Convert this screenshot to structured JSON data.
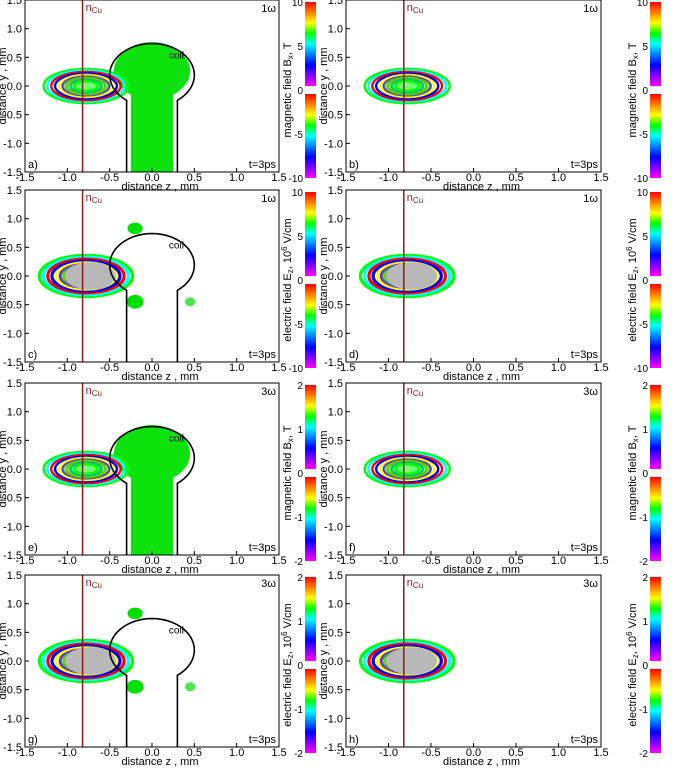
{
  "chart_data": [
    {
      "panel": "a)",
      "type": "heatmap",
      "quantity": "Bx",
      "variant": "coil",
      "harmonic": "1ω",
      "time": "t=3ps",
      "xlabel": "distance z , mm",
      "ylabel": "distance y , mm",
      "xlim": [
        -1.5,
        1.5
      ],
      "ylim": [
        -1.5,
        1.5
      ],
      "xticks": [
        "-1.5",
        "-1.0",
        "-0.5",
        "0.0",
        "0.5",
        "1.0",
        "1.5"
      ],
      "yticks": [
        "1.5",
        "1.0",
        "0.5",
        "0.0",
        "-0.5",
        "-1.0",
        "-1.5"
      ],
      "ncu_z": -0.82,
      "ncu_label": "n",
      "ncu_sub": "Cu",
      "coil_label": "coil"
    },
    {
      "panel": "b)",
      "type": "heatmap",
      "quantity": "Bx",
      "variant": "nocoil",
      "harmonic": "1ω",
      "time": "t=3ps",
      "xlabel": "distance z , mm",
      "ylabel": "distance y , mm",
      "xlim": [
        -1.5,
        1.5
      ],
      "ylim": [
        -1.5,
        1.5
      ],
      "xticks": [
        "-1.5",
        "-1.0",
        "-0.5",
        "0.0",
        "0.5",
        "1.0",
        "1.5"
      ],
      "yticks": [
        "1.5",
        "1.0",
        "0.5",
        "0.0",
        "-0.5",
        "-1.0",
        "-1.5"
      ],
      "ncu_z": -0.82,
      "ncu_label": "n",
      "ncu_sub": "Cu"
    },
    {
      "panel": "c)",
      "type": "heatmap",
      "quantity": "Ez",
      "variant": "coil",
      "harmonic": "1ω",
      "time": "t=3ps",
      "xlabel": "distance z , mm",
      "ylabel": "distance y , mm",
      "xlim": [
        -1.5,
        1.5
      ],
      "ylim": [
        -1.5,
        1.5
      ],
      "xticks": [
        "-1.5",
        "-1.0",
        "-0.5",
        "0.0",
        "0.5",
        "1.0",
        "1.5"
      ],
      "yticks": [
        "1.5",
        "1.0",
        "0.5",
        "0.0",
        "-0.5",
        "-1.0",
        "-1.5"
      ],
      "ncu_z": -0.82,
      "ncu_label": "n",
      "ncu_sub": "Cu",
      "coil_label": "coil"
    },
    {
      "panel": "d)",
      "type": "heatmap",
      "quantity": "Ez",
      "variant": "nocoil",
      "harmonic": "1ω",
      "time": "t=3ps",
      "xlabel": "distance z , mm",
      "ylabel": "distance y , mm",
      "xlim": [
        -1.5,
        1.5
      ],
      "ylim": [
        -1.5,
        1.5
      ],
      "xticks": [
        "-1.5",
        "-1.0",
        "-0.5",
        "0.0",
        "0.5",
        "1.0",
        "1.5"
      ],
      "yticks": [
        "1.5",
        "1.0",
        "0.5",
        "0.0",
        "-0.5",
        "-1.0",
        "-1.5"
      ],
      "ncu_z": -0.82,
      "ncu_label": "n",
      "ncu_sub": "Cu"
    },
    {
      "panel": "e)",
      "type": "heatmap",
      "quantity": "Bx",
      "variant": "coil",
      "harmonic": "3ω",
      "time": "t=3ps",
      "xlabel": "distance z , mm",
      "ylabel": "distance y , mm",
      "xlim": [
        -1.5,
        1.5
      ],
      "ylim": [
        -1.5,
        1.5
      ],
      "xticks": [
        "-1.5",
        "-1.0",
        "-0.5",
        "0.0",
        "0.5",
        "1.0",
        "1.5"
      ],
      "yticks": [
        "1.5",
        "1.0",
        "0.5",
        "0.0",
        "-0.5",
        "-1.0",
        "-1.5"
      ],
      "ncu_z": -0.82,
      "ncu_label": "n",
      "ncu_sub": "Cu",
      "coil_label": "coil"
    },
    {
      "panel": "f)",
      "type": "heatmap",
      "quantity": "Bx",
      "variant": "nocoil",
      "harmonic": "3ω",
      "time": "t=3ps",
      "xlabel": "distance z , mm",
      "ylabel": "distance y , mm",
      "xlim": [
        -1.5,
        1.5
      ],
      "ylim": [
        -1.5,
        1.5
      ],
      "xticks": [
        "-1.5",
        "-1.0",
        "-0.5",
        "0.0",
        "0.5",
        "1.0",
        "1.5"
      ],
      "yticks": [
        "1.5",
        "1.0",
        "0.5",
        "0.0",
        "-0.5",
        "-1.0",
        "-1.5"
      ],
      "ncu_z": -0.82,
      "ncu_label": "n",
      "ncu_sub": "Cu"
    },
    {
      "panel": "g)",
      "type": "heatmap",
      "quantity": "Ez",
      "variant": "coil",
      "harmonic": "3ω",
      "time": "t=3ps",
      "xlabel": "distance z , mm",
      "ylabel": "distance y , mm",
      "xlim": [
        -1.5,
        1.5
      ],
      "ylim": [
        -1.5,
        1.5
      ],
      "xticks": [
        "-1.5",
        "-1.0",
        "-0.5",
        "0.0",
        "0.5",
        "1.0",
        "1.5"
      ],
      "yticks": [
        "1.5",
        "1.0",
        "0.5",
        "0.0",
        "-0.5",
        "-1.0",
        "-1.5"
      ],
      "ncu_z": -0.82,
      "ncu_label": "n",
      "ncu_sub": "Cu",
      "coil_label": "coil"
    },
    {
      "panel": "h)",
      "type": "heatmap",
      "quantity": "Ez",
      "variant": "nocoil",
      "harmonic": "3ω",
      "time": "t=3ps",
      "xlabel": "distance z , mm",
      "ylabel": "distance y , mm",
      "xlim": [
        -1.5,
        1.5
      ],
      "ylim": [
        -1.5,
        1.5
      ],
      "xticks": [
        "-1.5",
        "-1.0",
        "-0.5",
        "0.0",
        "0.5",
        "1.0",
        "1.5"
      ],
      "yticks": [
        "1.5",
        "1.0",
        "0.5",
        "0.0",
        "-0.5",
        "-1.0",
        "-1.5"
      ],
      "ncu_z": -0.82,
      "ncu_label": "n",
      "ncu_sub": "Cu"
    }
  ],
  "colorbars": [
    {
      "label": "magnetic field B",
      "sub": "x",
      "unit": ", T",
      "ticks": [
        "10",
        "5",
        "0",
        "-5",
        "-10"
      ]
    },
    {
      "label": "electric field E",
      "sub": "z",
      "unit": ", 10",
      "sup": "6",
      "unit2": " V/cm",
      "ticks": [
        "10",
        "5",
        "0",
        "-5",
        "-10"
      ]
    },
    {
      "label": "magnetic field B",
      "sub": "x",
      "unit": ", T",
      "ticks": [
        "2",
        "1",
        "0",
        "-1",
        "-2"
      ]
    },
    {
      "label": "electric field E",
      "sub": "z",
      "unit": ", 10",
      "sup": "6",
      "unit2": " V/cm",
      "ticks": [
        "2",
        "1",
        "0",
        "-1",
        "-2"
      ]
    }
  ],
  "colors": {
    "ncu_line": "#8b1a1a",
    "field_background": "#00e000",
    "masked_core": "#b8b8b8",
    "colormap": [
      "#ff0000",
      "#ff8000",
      "#ffff00",
      "#00ff00",
      "#00ffff",
      "#0080ff",
      "#0000ff",
      "#8000ff",
      "#ff00ff"
    ]
  }
}
